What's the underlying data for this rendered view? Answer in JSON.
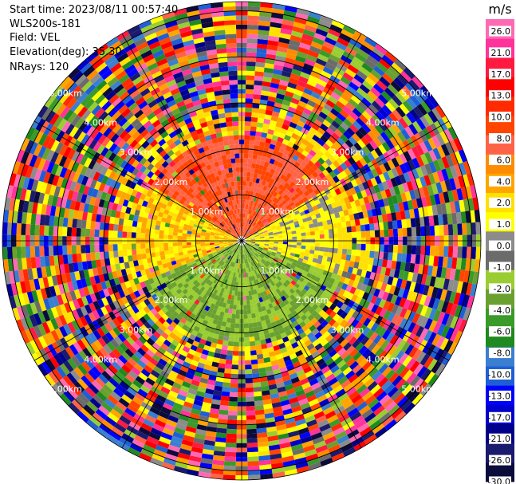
{
  "info": {
    "start_time": "Start time: 2023/08/11 00:57:40",
    "instrument": "WLS200s-181",
    "field": "Field: VEL",
    "elevation": "Elevation(deg): 35.30",
    "nrays": "NRays: 120"
  },
  "colorbar": {
    "unit": "m/s",
    "colors": [
      "#0b0b3c",
      "#1a1a6e",
      "#00008b",
      "#0000cd",
      "#0000ff",
      "#1f5fd6",
      "#3a7fd0",
      "#1f8a1f",
      "#3a9a2a",
      "#6aa030",
      "#9acd32",
      "#6b6b6b",
      "#8c8c8c",
      "#ffff00",
      "#ffe000",
      "#ffa500",
      "#ff8c00",
      "#ff6347",
      "#ff4500",
      "#ff2a00",
      "#ff0000",
      "#ff1a40",
      "#ff3399",
      "#ff69b4"
    ],
    "tick_labels": [
      "26.0",
      "21.0",
      "17.0",
      "13.0",
      "10.0",
      "8.0",
      "6.0",
      "4.0",
      "2.0",
      "1.0",
      "0.0",
      "-1.0",
      "-2.0",
      "-4.0",
      "-6.0",
      "-8.0",
      "-10.0",
      "-13.0",
      "-17.0",
      "-21.0",
      "-26.0",
      "-30.0"
    ]
  },
  "chart_data": {
    "type": "ppi",
    "field": "VEL",
    "units": "m/s",
    "elevation_deg": 35.3,
    "n_rays": 120,
    "range_rings_km": [
      1.0,
      2.0,
      3.0,
      4.0,
      5.0
    ],
    "range_ring_labels": [
      "1.00km",
      "2.00km",
      "3.00km",
      "4.00km",
      "5.00km"
    ],
    "max_range_km": 5.2,
    "colorbar_levels": [
      -30.0,
      -26.0,
      -21.0,
      -17.0,
      -13.0,
      -10.0,
      -8.0,
      -6.0,
      -4.0,
      -2.0,
      -1.0,
      0.0,
      1.0,
      2.0,
      4.0,
      6.0,
      8.0,
      10.0,
      13.0,
      17.0,
      21.0,
      26.0
    ],
    "near_field_pattern": [
      {
        "sector": "north",
        "value_ms": 8.0
      },
      {
        "sector": "west",
        "value_ms": 2.0
      },
      {
        "sector": "east",
        "value_ms": 0.0
      },
      {
        "sector": "south",
        "value_ms": -4.0
      }
    ]
  }
}
